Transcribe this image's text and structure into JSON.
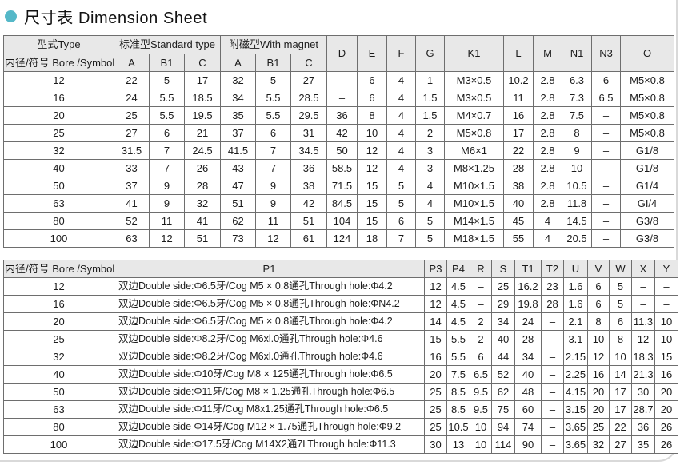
{
  "page": {
    "title": "尺寸表 Dimension Sheet",
    "bullet_color": "#55b8c8",
    "header_bg": "#e8e8e8"
  },
  "table1": {
    "header": {
      "type_label": "型式Type",
      "bore_label": "内径/符号 Bore /Symbol",
      "standard_label": "标准型Standard type",
      "magnet_label": "附磁型With magnet",
      "sub_cols": [
        "A",
        "B1",
        "C",
        "A",
        "B1",
        "C"
      ],
      "single_cols": [
        "D",
        "E",
        "F",
        "G",
        "K1",
        "L",
        "M",
        "N1",
        "N3",
        "O"
      ]
    },
    "rows": [
      [
        "12",
        "22",
        "5",
        "17",
        "32",
        "5",
        "27",
        "–",
        "6",
        "4",
        "1",
        "M3×0.5",
        "10.2",
        "2.8",
        "6.3",
        "6",
        "M5×0.8"
      ],
      [
        "16",
        "24",
        "5.5",
        "18.5",
        "34",
        "5.5",
        "28.5",
        "–",
        "6",
        "4",
        "1.5",
        "M3×0.5",
        "11",
        "2.8",
        "7.3",
        "6 5",
        "M5×0.8"
      ],
      [
        "20",
        "25",
        "5.5",
        "19.5",
        "35",
        "5.5",
        "29.5",
        "36",
        "8",
        "4",
        "1.5",
        "M4×0.7",
        "16",
        "2.8",
        "7.5",
        "–",
        "M5×0.8"
      ],
      [
        "25",
        "27",
        "6",
        "21",
        "37",
        "6",
        "31",
        "42",
        "10",
        "4",
        "2",
        "M5×0.8",
        "17",
        "2.8",
        "8",
        "–",
        "M5×0.8"
      ],
      [
        "32",
        "31.5",
        "7",
        "24.5",
        "41.5",
        "7",
        "34.5",
        "50",
        "12",
        "4",
        "3",
        "M6×1",
        "22",
        "2.8",
        "9",
        "–",
        "G1/8"
      ],
      [
        "40",
        "33",
        "7",
        "26",
        "43",
        "7",
        "36",
        "58.5",
        "12",
        "4",
        "3",
        "M8×1.25",
        "28",
        "2.8",
        "10",
        "–",
        "G1/8"
      ],
      [
        "50",
        "37",
        "9",
        "28",
        "47",
        "9",
        "38",
        "71.5",
        "15",
        "5",
        "4",
        "M10×1.5",
        "38",
        "2.8",
        "10.5",
        "–",
        "G1/4"
      ],
      [
        "63",
        "41",
        "9",
        "32",
        "51",
        "9",
        "42",
        "84.5",
        "15",
        "5",
        "4",
        "M10×1.5",
        "40",
        "2.8",
        "11.8",
        "–",
        "GI/4"
      ],
      [
        "80",
        "52",
        "11",
        "41",
        "62",
        "11",
        "51",
        "104",
        "15",
        "6",
        "5",
        "M14×1.5",
        "45",
        "4",
        "14.5",
        "–",
        "G3/8"
      ],
      [
        "100",
        "63",
        "12",
        "51",
        "73",
        "12",
        "61",
        "124",
        "18",
        "7",
        "5",
        "M18×1.5",
        "55",
        "4",
        "20.5",
        "–",
        "G3/8"
      ]
    ]
  },
  "table2": {
    "header": [
      "内径/符号 Bore /Symbol",
      "P1",
      "P3",
      "P4",
      "R",
      "S",
      "T1",
      "T2",
      "U",
      "V",
      "W",
      "X",
      "Y"
    ],
    "rows": [
      [
        "12",
        "双边Double side:Φ6.5牙/Cog M5 × 0.8通孔Through hole:Φ4.2",
        "12",
        "4.5",
        "–",
        "25",
        "16.2",
        "23",
        "1.6",
        "6",
        "5",
        "–",
        "–"
      ],
      [
        "16",
        "双边Double side:Φ6.5牙/Cog M5 × 0.8通孔Through hole:ΦN4.2",
        "12",
        "4.5",
        "–",
        "29",
        "19.8",
        "28",
        "1.6",
        "6",
        "5",
        "–",
        "–"
      ],
      [
        "20",
        "双边Double side:Φ6.5牙/Cog M5 × 0.8通孔Through hole:Φ4.2",
        "14",
        "4.5",
        "2",
        "34",
        "24",
        "–",
        "2.1",
        "8",
        "6",
        "11.3",
        "10"
      ],
      [
        "25",
        "双边Double side:Φ8.2牙/Cog M6xl.0通孔Through hole:Φ4.6",
        "15",
        "5.5",
        "2",
        "40",
        "28",
        "–",
        "3.1",
        "10",
        "8",
        "12",
        "10"
      ],
      [
        "32",
        "双边Double side:Φ8.2牙/Cog M6xl.0通孔Through hole:Φ4.6",
        "16",
        "5.5",
        "6",
        "44",
        "34",
        "–",
        "2.15",
        "12",
        "10",
        "18.3",
        "15"
      ],
      [
        "40",
        "双边Double side:Φ10牙/Cog M8 × 125通孔Through hole:Φ6.5",
        "20",
        "7.5",
        "6.5",
        "52",
        "40",
        "–",
        "2.25",
        "16",
        "14",
        "21.3",
        "16"
      ],
      [
        "50",
        "双边Double side:Φ11牙/Cog M8 × 1.25通孔Through hole:Φ6.5",
        "25",
        "8.5",
        "9.5",
        "62",
        "48",
        "–",
        "4.15",
        "20",
        "17",
        "30",
        "20"
      ],
      [
        "63",
        "双边Double side:Φ11牙/Cog M8x1.25通孔Through hole:Φ6.5",
        "25",
        "8.5",
        "9.5",
        "75",
        "60",
        "–",
        "3.15",
        "20",
        "17",
        "28.7",
        "20"
      ],
      [
        "80",
        "双边Double side Φ14牙/Cog M12 × 1.75通孔Through hole:Φ9.2",
        "25",
        "10.5",
        "10",
        "94",
        "74",
        "–",
        "3.65",
        "25",
        "22",
        "36",
        "26"
      ],
      [
        "100",
        "双边Double side:Φ17.5牙/Cog M14X2通7LThrough hole:Φ11.3",
        "30",
        "13",
        "10",
        "114",
        "90",
        "–",
        "3.65",
        "32",
        "27",
        "35",
        "26"
      ]
    ]
  }
}
